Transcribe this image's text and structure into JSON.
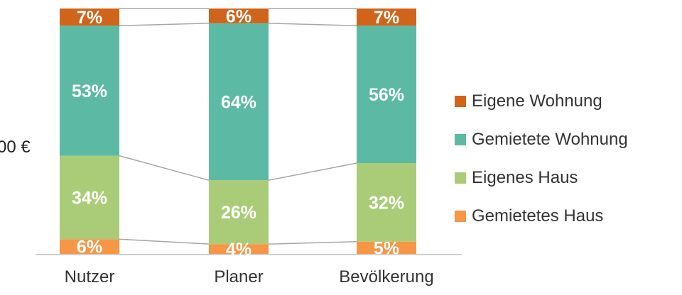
{
  "chart_data": {
    "type": "bar",
    "stacked": true,
    "percent_stacked": true,
    "categories": [
      "Nutzer",
      "Planer",
      "Bevölkerung"
    ],
    "series": [
      {
        "name": "Gemietetes Haus",
        "values": [
          6,
          4,
          5
        ],
        "labels": [
          "6%",
          "4%",
          "5%"
        ],
        "color": "#f79646"
      },
      {
        "name": "Eigenes Haus",
        "values": [
          34,
          26,
          32
        ],
        "labels": [
          "34%",
          "26%",
          "32%"
        ],
        "color": "#aacc78"
      },
      {
        "name": "Gemietete Wohnung",
        "values": [
          53,
          64,
          56
        ],
        "labels": [
          "53%",
          "64%",
          "56%"
        ],
        "color": "#5cbaa4"
      },
      {
        "name": "Eigene Wohnung",
        "values": [
          7,
          6,
          7
        ],
        "labels": [
          "7%",
          "6%",
          "7%"
        ],
        "color": "#d0641a"
      }
    ],
    "legend_order": [
      "Eigene Wohnung",
      "Gemietete Wohnung",
      "Eigenes Haus",
      "Gemietetes Haus"
    ],
    "legend_position": "right",
    "ylim": [
      0,
      100
    ],
    "series_lines": true,
    "grid": false,
    "partial_text": "00 €"
  }
}
